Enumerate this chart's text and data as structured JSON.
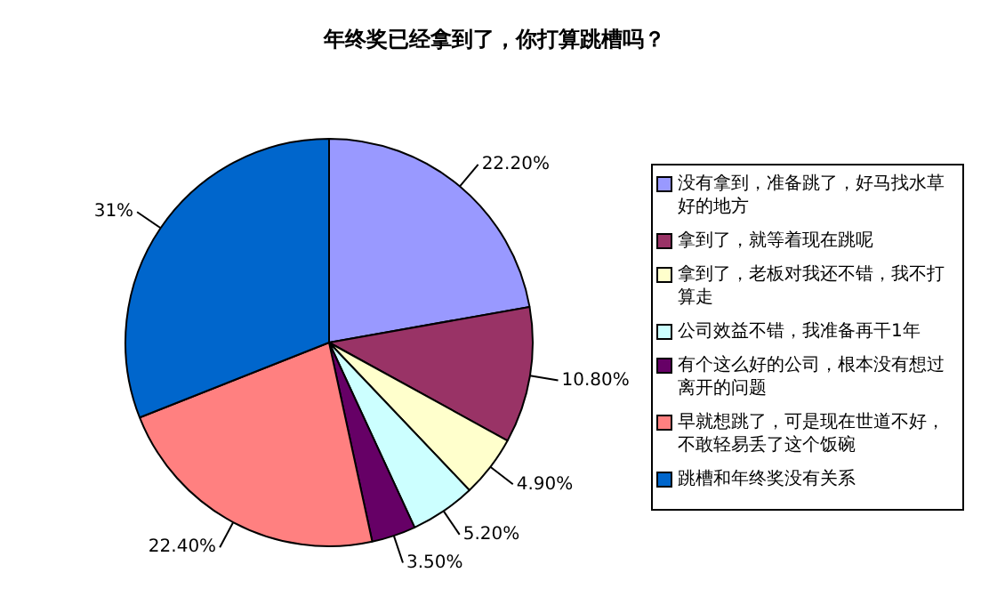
{
  "chart_data": {
    "type": "pie",
    "title": "年终奖已经拿到了，你打算跳槽吗？",
    "categories": [
      "没有拿到，准备跳了，好马找水草好的地方",
      "拿到了，就等着现在跳呢",
      "拿到了，老板对我还不错，我不打算走",
      "公司效益不错，我准备再干1年",
      "有个这么好的公司，根本没有想过离开的问题",
      "早就想跳了，可是现在世道不好，不敢轻易丢了这个饭碗",
      "跳槽和年终奖没有关系"
    ],
    "values": [
      22.2,
      10.8,
      4.9,
      5.2,
      3.5,
      22.4,
      31
    ],
    "colors": [
      "#9999ff",
      "#993366",
      "#ffffcc",
      "#ccffff",
      "#660066",
      "#ff8080",
      "#0066cc"
    ],
    "value_labels": [
      "22.20%",
      "10.80%",
      "4.90%",
      "5.20%",
      "3.50%",
      "22.40%",
      "31%"
    ],
    "legend": "right"
  }
}
